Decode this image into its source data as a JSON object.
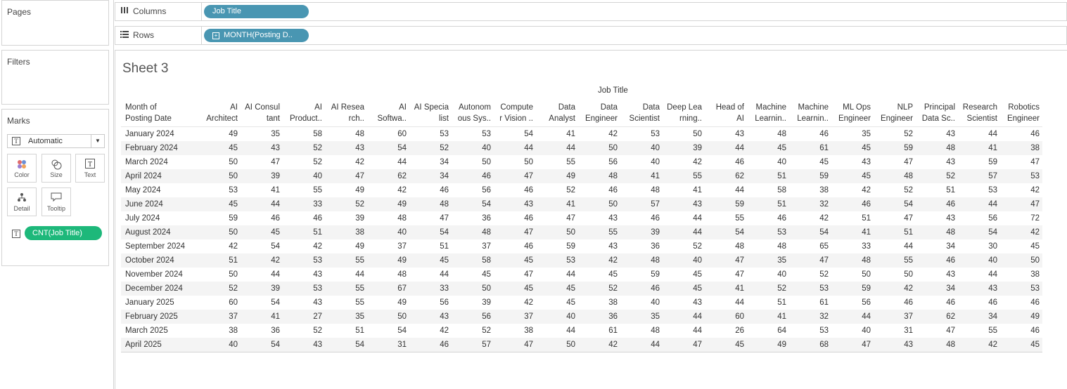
{
  "pages_label": "Pages",
  "filters_label": "Filters",
  "marks": {
    "title": "Marks",
    "type": "Automatic",
    "buttons": {
      "color": "Color",
      "size": "Size",
      "text": "Text",
      "detail": "Detail",
      "tooltip": "Tooltip"
    },
    "field_pill": "CNT(Job Title)"
  },
  "columns_shelf": {
    "label": "Columns",
    "pill": "Job Title"
  },
  "rows_shelf": {
    "label": "Rows",
    "pill": "MONTH(Posting D.."
  },
  "sheet_title": "Sheet 3",
  "column_group_header": "Job Title",
  "row_header": [
    "Month of",
    "Posting Date"
  ],
  "columns": [
    [
      "AI",
      "Architect"
    ],
    [
      "AI Consul",
      "tant"
    ],
    [
      "AI",
      "Product.."
    ],
    [
      "AI Resea",
      "rch.."
    ],
    [
      "AI",
      "Softwa.."
    ],
    [
      "AI Specia",
      "list"
    ],
    [
      "Autonom",
      "ous Sys.."
    ],
    [
      "Compute",
      "r Vision .."
    ],
    [
      "Data",
      "Analyst"
    ],
    [
      "Data",
      "Engineer"
    ],
    [
      "Data",
      "Scientist"
    ],
    [
      "Deep Lea",
      "rning.."
    ],
    [
      "Head of",
      "AI"
    ],
    [
      "Machine",
      "Learnin.."
    ],
    [
      "Machine",
      "Learnin.."
    ],
    [
      "ML Ops",
      "Engineer"
    ],
    [
      "NLP",
      "Engineer"
    ],
    [
      "Principal",
      "Data Sc.."
    ],
    [
      "Research",
      "Scientist"
    ],
    [
      "Robotics",
      "Engineer"
    ]
  ],
  "rows": [
    {
      "month": "January 2024",
      "values": [
        "49",
        "35",
        "58",
        "48",
        "60",
        "53",
        "53",
        "54",
        "41",
        "42",
        "53",
        "50",
        "43",
        "48",
        "46",
        "35",
        "52",
        "43",
        "44",
        "46"
      ]
    },
    {
      "month": "February 2024",
      "values": [
        "45",
        "43",
        "52",
        "43",
        "54",
        "52",
        "40",
        "44",
        "44",
        "50",
        "40",
        "39",
        "44",
        "45",
        "61",
        "45",
        "59",
        "48",
        "41",
        "38"
      ]
    },
    {
      "month": "March 2024",
      "values": [
        "50",
        "47",
        "52",
        "42",
        "44",
        "34",
        "50",
        "50",
        "55",
        "56",
        "40",
        "42",
        "46",
        "40",
        "45",
        "43",
        "47",
        "43",
        "59",
        "47"
      ]
    },
    {
      "month": "April 2024",
      "values": [
        "50",
        "39",
        "40",
        "47",
        "62",
        "34",
        "46",
        "47",
        "49",
        "48",
        "41",
        "55",
        "62",
        "51",
        "59",
        "45",
        "48",
        "52",
        "57",
        "53"
      ]
    },
    {
      "month": "May 2024",
      "values": [
        "53",
        "41",
        "55",
        "49",
        "42",
        "46",
        "56",
        "46",
        "52",
        "46",
        "48",
        "41",
        "44",
        "58",
        "38",
        "42",
        "52",
        "51",
        "53",
        "42"
      ]
    },
    {
      "month": "June 2024",
      "values": [
        "45",
        "44",
        "33",
        "52",
        "49",
        "48",
        "54",
        "43",
        "41",
        "50",
        "57",
        "43",
        "59",
        "51",
        "32",
        "46",
        "54",
        "46",
        "44",
        "47"
      ]
    },
    {
      "month": "July 2024",
      "values": [
        "59",
        "46",
        "46",
        "39",
        "48",
        "47",
        "36",
        "46",
        "47",
        "43",
        "46",
        "44",
        "55",
        "46",
        "42",
        "51",
        "47",
        "43",
        "56",
        "72"
      ]
    },
    {
      "month": "August 2024",
      "values": [
        "50",
        "45",
        "51",
        "38",
        "40",
        "54",
        "48",
        "47",
        "50",
        "55",
        "39",
        "44",
        "54",
        "53",
        "54",
        "41",
        "51",
        "48",
        "54",
        "42"
      ]
    },
    {
      "month": "September 2024",
      "values": [
        "42",
        "54",
        "42",
        "49",
        "37",
        "51",
        "37",
        "46",
        "59",
        "43",
        "36",
        "52",
        "48",
        "48",
        "65",
        "33",
        "44",
        "34",
        "30",
        "45"
      ]
    },
    {
      "month": "October 2024",
      "values": [
        "51",
        "42",
        "53",
        "55",
        "49",
        "45",
        "58",
        "45",
        "53",
        "42",
        "48",
        "40",
        "47",
        "35",
        "47",
        "48",
        "55",
        "46",
        "40",
        "50"
      ]
    },
    {
      "month": "November 2024",
      "values": [
        "50",
        "44",
        "43",
        "44",
        "48",
        "44",
        "45",
        "47",
        "44",
        "45",
        "59",
        "45",
        "47",
        "40",
        "52",
        "50",
        "50",
        "43",
        "44",
        "38"
      ]
    },
    {
      "month": "December 2024",
      "values": [
        "52",
        "39",
        "53",
        "55",
        "67",
        "33",
        "50",
        "45",
        "45",
        "52",
        "46",
        "45",
        "41",
        "52",
        "53",
        "59",
        "42",
        "34",
        "43",
        "53"
      ]
    },
    {
      "month": "January 2025",
      "values": [
        "60",
        "54",
        "43",
        "55",
        "49",
        "56",
        "39",
        "42",
        "45",
        "38",
        "40",
        "43",
        "44",
        "51",
        "61",
        "56",
        "46",
        "46",
        "46",
        "46"
      ]
    },
    {
      "month": "February 2025",
      "values": [
        "37",
        "41",
        "27",
        "35",
        "50",
        "43",
        "56",
        "37",
        "40",
        "36",
        "35",
        "44",
        "60",
        "41",
        "32",
        "44",
        "37",
        "62",
        "34",
        "49"
      ]
    },
    {
      "month": "March 2025",
      "values": [
        "38",
        "36",
        "52",
        "51",
        "54",
        "42",
        "52",
        "38",
        "44",
        "61",
        "48",
        "44",
        "26",
        "64",
        "53",
        "40",
        "31",
        "47",
        "55",
        "46"
      ]
    },
    {
      "month": "April 2025",
      "values": [
        "40",
        "54",
        "43",
        "54",
        "31",
        "46",
        "57",
        "47",
        "50",
        "42",
        "44",
        "47",
        "45",
        "49",
        "68",
        "47",
        "43",
        "48",
        "42",
        "45"
      ]
    }
  ]
}
